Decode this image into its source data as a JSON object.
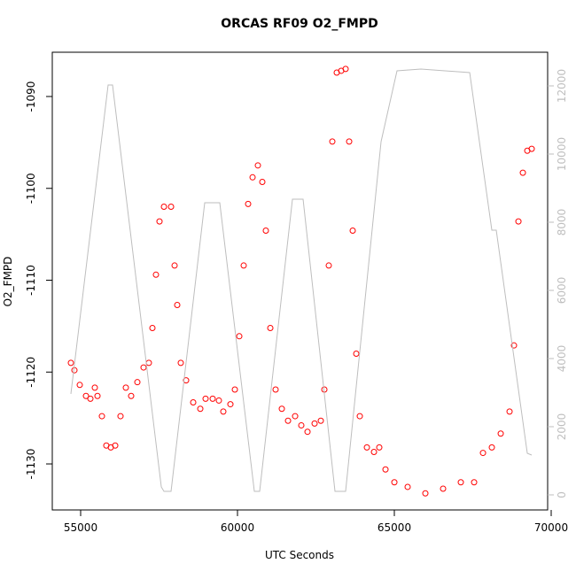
{
  "chart_data": {
    "type": "scatter",
    "title": "ORCAS RF09 O2_FMPD",
    "xlabel": "UTC Seconds",
    "ylabel": "O2_FMPD",
    "xlim": [
      54096,
      69887
    ],
    "ylim": [
      -1135.01,
      -1085.18
    ],
    "y2lim": [
      -442,
      12987
    ],
    "xticks": [
      55000,
      60000,
      65000,
      70000
    ],
    "yticks": [
      -1130,
      -1120,
      -1110,
      -1100,
      -1090
    ],
    "y2ticks": [
      0,
      2000,
      4000,
      6000,
      8000,
      10000,
      12000
    ],
    "series": [
      {
        "color": "#ff0000",
        "marker": "open-circle",
        "x": [
          54689,
          54802,
          54972,
          55170,
          55311,
          55452,
          55537,
          55678,
          55819,
          55961,
          56102,
          56271,
          56441,
          56610,
          56808,
          57006,
          57175,
          57288,
          57401,
          57514,
          57656,
          57882,
          57995,
          58079,
          58192,
          58362,
          58588,
          58814,
          58983,
          59209,
          59407,
          59548,
          59774,
          59916,
          60057,
          60198,
          60339,
          60481,
          60650,
          60791,
          60904,
          61046,
          61215,
          61413,
          61611,
          61837,
          62034,
          62232,
          62458,
          62656,
          62769,
          62910,
          63023,
          63164,
          63306,
          63447,
          63560,
          63673,
          63786,
          63899,
          64125,
          64351,
          64520,
          64718,
          65001,
          65424,
          65989,
          66554,
          67119,
          67543,
          67826,
          68108,
          68391,
          68673,
          68814,
          68956,
          69097,
          69238,
          69379
        ],
        "values": [
          -1119.0,
          -1119.8,
          -1121.4,
          -1122.6,
          -1122.9,
          -1121.7,
          -1122.6,
          -1124.8,
          -1128.0,
          -1128.2,
          -1128.0,
          -1124.8,
          -1121.7,
          -1122.6,
          -1121.1,
          -1119.5,
          -1119.0,
          -1115.2,
          -1109.4,
          -1103.6,
          -1102.0,
          -1102.0,
          -1108.4,
          -1112.7,
          -1119.0,
          -1120.9,
          -1123.3,
          -1124.0,
          -1122.9,
          -1122.9,
          -1123.1,
          -1124.3,
          -1123.5,
          -1121.9,
          -1116.1,
          -1108.4,
          -1101.7,
          -1098.8,
          -1097.5,
          -1099.3,
          -1104.6,
          -1115.2,
          -1121.9,
          -1124.0,
          -1125.3,
          -1124.8,
          -1125.8,
          -1126.5,
          -1125.6,
          -1125.3,
          -1121.9,
          -1108.4,
          -1094.9,
          -1087.4,
          -1087.2,
          -1087.0,
          -1094.9,
          -1104.6,
          -1118.0,
          -1124.8,
          -1128.2,
          -1128.7,
          -1128.2,
          -1130.6,
          -1132.0,
          -1132.5,
          -1133.2,
          -1132.7,
          -1132.0,
          -1132.0,
          -1128.8,
          -1128.2,
          -1126.7,
          -1124.3,
          -1117.1,
          -1103.6,
          -1098.3,
          -1095.9,
          -1095.7
        ]
      },
      {
        "color": "#bebebe",
        "type": "line",
        "axis": "y2",
        "x": [
          54689,
          55876,
          56017,
          57571,
          57656,
          57882,
          58955,
          59435,
          60537,
          60707,
          61752,
          62091,
          63108,
          63447,
          64577,
          65085,
          65848,
          67402,
          68108,
          68249,
          69238,
          69379
        ],
        "values": [
          2961,
          12026,
          12026,
          234,
          104,
          104,
          8571,
          8571,
          104,
          104,
          8675,
          8675,
          104,
          104,
          10364,
          12442,
          12494,
          12390,
          7766,
          7766,
          1221,
          1169
        ]
      }
    ]
  }
}
